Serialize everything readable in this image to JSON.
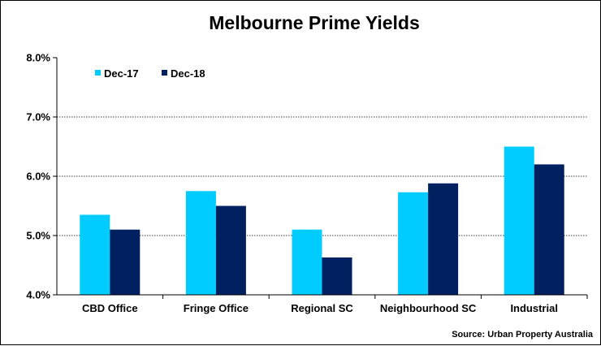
{
  "chart_data": {
    "type": "bar",
    "title": "Melbourne Prime Yields",
    "categories": [
      "CBD Office",
      "Fringe Office",
      "Regional SC",
      "Neighbourhood SC",
      "Industrial"
    ],
    "series": [
      {
        "name": "Dec-17",
        "color": "#00CCFF",
        "values": [
          5.35,
          5.75,
          5.1,
          5.73,
          6.5
        ]
      },
      {
        "name": "Dec-18",
        "color": "#002060",
        "values": [
          5.1,
          5.5,
          4.63,
          5.88,
          6.2
        ]
      }
    ],
    "y_ticks": [
      "4.0%",
      "5.0%",
      "6.0%",
      "7.0%",
      "8.0%"
    ],
    "ylim": [
      4.0,
      8.0
    ],
    "grid": true,
    "legend": "top-left",
    "source": "Source: Urban  Property Australia"
  }
}
